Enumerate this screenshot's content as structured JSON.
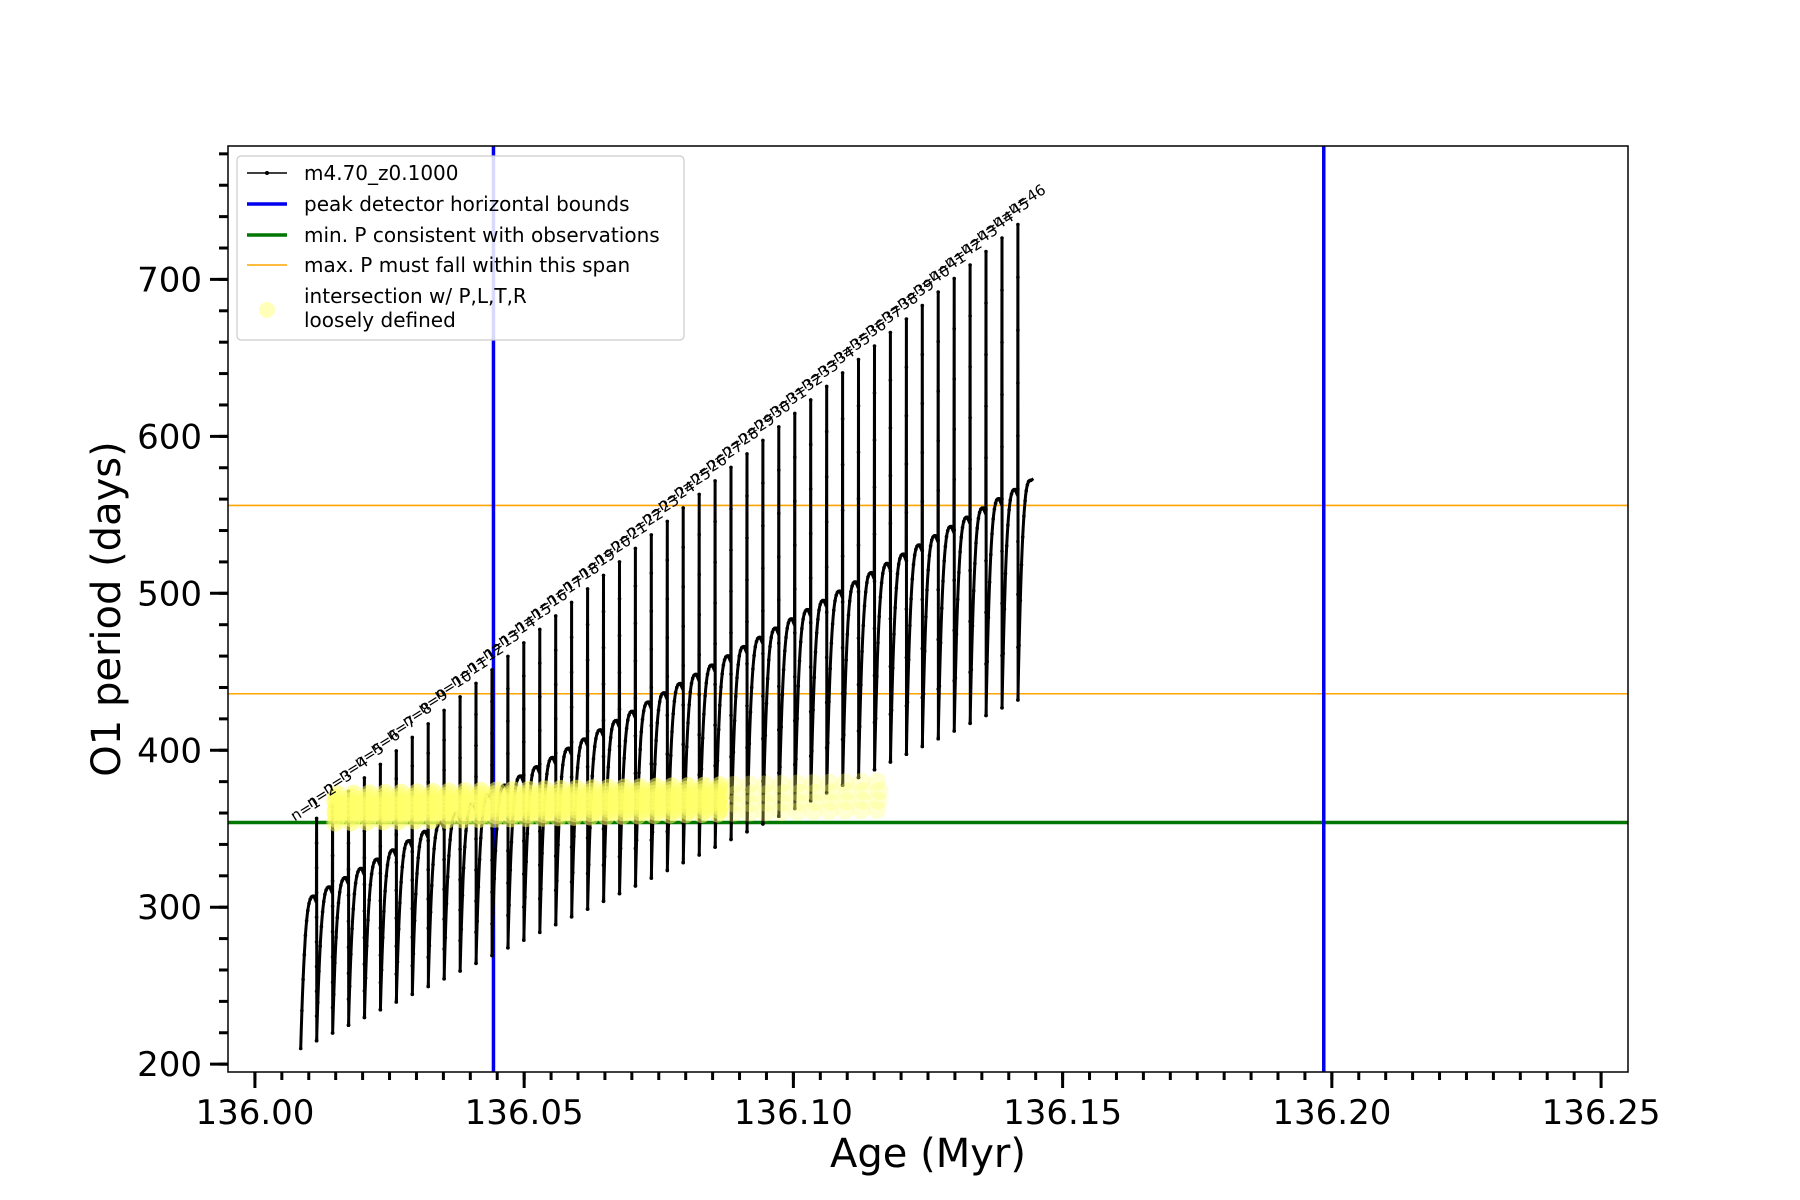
{
  "chart_data": {
    "type": "line",
    "title": "",
    "xlabel": "Age (Myr)",
    "ylabel": "O1 period (days)",
    "xlim": [
      135.995,
      136.255
    ],
    "ylim": [
      195,
      785
    ],
    "x_ticks": [
      "136.00",
      "136.05",
      "136.10",
      "136.15",
      "136.20",
      "136.25"
    ],
    "x_tick_values": [
      136.0,
      136.05,
      136.1,
      136.15,
      136.2,
      136.25
    ],
    "y_ticks": [
      "200",
      "300",
      "400",
      "500",
      "600",
      "700"
    ],
    "y_tick_values": [
      200,
      300,
      400,
      500,
      600,
      700
    ],
    "legend_position": "top-left",
    "grid": false,
    "series": [
      {
        "name": "m4.70_z0.1000",
        "color": "#000000",
        "marker": "dot",
        "pulse_count": 46,
        "start_age": 136.0085,
        "pulse_spacing": 0.00296,
        "first_peak": 348,
        "last_peak": 735,
        "first_trough": 210,
        "last_trough": 432,
        "first_plateau": 307,
        "last_plateau": 572
      }
    ],
    "vertical_lines": [
      {
        "name": "peak detector horizontal bounds",
        "x": 136.0443,
        "color": "#0000ee"
      },
      {
        "name": "peak detector horizontal bounds",
        "x": 136.1985,
        "color": "#0000ee"
      }
    ],
    "horizontal_lines": [
      {
        "name": "min. P consistent with observations",
        "y": 354,
        "color": "#007700"
      },
      {
        "name": "max. P must fall within this span",
        "y": 436,
        "color": "#ffa500"
      },
      {
        "name": "max. P must fall within this span",
        "y": 556,
        "color": "#ffa500"
      }
    ],
    "intersections": {
      "name": "intersection w/ P,L,T,R\nloosely defined",
      "color": "#ffff66",
      "first_pulse": 3,
      "last_pulse": 37,
      "period_low": 354,
      "period_high": 372
    },
    "peak_labels": [
      "n=1",
      "n=2",
      "n=3",
      "n=4",
      "n=5",
      "n=6",
      "n=7",
      "n=8",
      "n=9",
      "n=10",
      "n=11",
      "n=12",
      "n=13",
      "n=14",
      "n=15",
      "n=16",
      "n=17",
      "n=18",
      "n=19",
      "n=20",
      "n=21",
      "n=22",
      "n=23",
      "n=24",
      "n=25",
      "n=26",
      "n=27",
      "n=28",
      "n=29",
      "n=30",
      "n=31",
      "n=32",
      "n=33",
      "n=34",
      "n=35",
      "n=36",
      "n=37",
      "n=38",
      "n=39",
      "n=40",
      "n=41",
      "n=42",
      "n=43",
      "n=44",
      "n=45",
      "n=46"
    ]
  },
  "legend": {
    "items": [
      {
        "label": "m4.70_z0.1000"
      },
      {
        "label": "peak detector horizontal bounds"
      },
      {
        "label": "min. P consistent with observations"
      },
      {
        "label": "max. P must fall within this span"
      },
      {
        "label": "intersection w/ P,L,T,R"
      },
      {
        "label": "loosely defined"
      }
    ]
  }
}
